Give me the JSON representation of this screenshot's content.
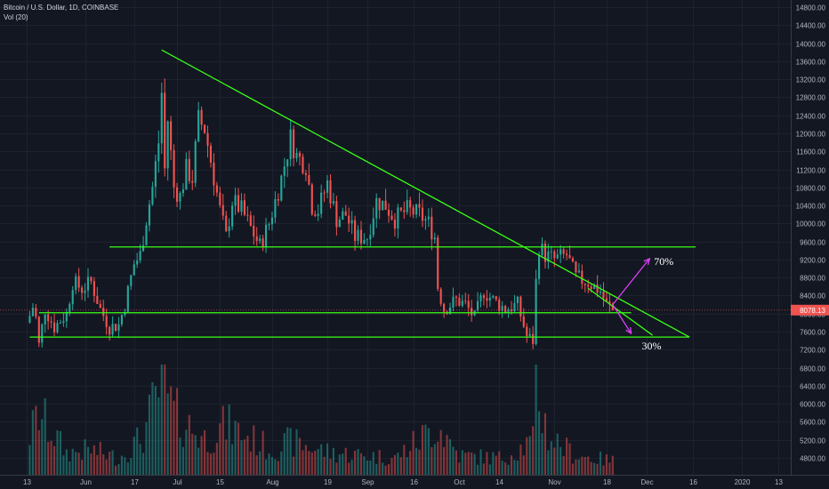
{
  "header": {
    "symbol_line": "Bitcoin / U.S. Dollar, 1D, COINBASE",
    "volume_line": "Vol (20)"
  },
  "colors": {
    "background": "#131722",
    "grid": "#1e2230",
    "up": "#26a69a",
    "down": "#ef5350",
    "trendline": "#39ff14",
    "arrow": "#e040fb",
    "price_tag": "#ef5350"
  },
  "chart_data": {
    "type": "candlestick",
    "y_axis": {
      "ticks": [
        4800,
        5200,
        5600,
        6000,
        6400,
        6800,
        7200,
        7600,
        8000,
        8400,
        8800,
        9200,
        9600,
        10000,
        10400,
        10800,
        11200,
        11600,
        12000,
        12400,
        12800,
        13200,
        13600,
        14000,
        14400,
        14800
      ],
      "tick_labels": [
        "4800.00",
        "5200.00",
        "5600.00",
        "6000.00",
        "6400.00",
        "6800.00",
        "7200.00",
        "7600.00",
        "8000.00",
        "8400.00",
        "8800.00",
        "9200.00",
        "9600.00",
        "10000.00",
        "10400.00",
        "10800.00",
        "11200.00",
        "11600.00",
        "12000.00",
        "12400.00",
        "12800.00",
        "13200.00",
        "13600.00",
        "14000.00",
        "14400.00",
        "14800.00"
      ],
      "range": [
        4700,
        14900
      ]
    },
    "x_axis": {
      "range": [
        "2019-05-13",
        "2020-01-15"
      ],
      "ticks": [
        {
          "label": "13",
          "date": "2019-05-13"
        },
        {
          "label": "Jun",
          "date": "2019-06-01"
        },
        {
          "label": "17",
          "date": "2019-06-17"
        },
        {
          "label": "Jul",
          "date": "2019-07-01"
        },
        {
          "label": "15",
          "date": "2019-07-15"
        },
        {
          "label": "Aug",
          "date": "2019-08-01"
        },
        {
          "label": "19",
          "date": "2019-08-19"
        },
        {
          "label": "Sep",
          "date": "2019-09-01"
        },
        {
          "label": "16",
          "date": "2019-09-16"
        },
        {
          "label": "Oct",
          "date": "2019-10-01"
        },
        {
          "label": "14",
          "date": "2019-10-14"
        },
        {
          "label": "Nov",
          "date": "2019-11-01"
        },
        {
          "label": "18",
          "date": "2019-11-18"
        },
        {
          "label": "Dec",
          "date": "2019-12-01"
        },
        {
          "label": "16",
          "date": "2019-12-16"
        },
        {
          "label": "2020",
          "date": "2020-01-01"
        },
        {
          "label": "13",
          "date": "2020-01-13"
        }
      ]
    },
    "current_price": {
      "value": 8078.13,
      "label": "8078.13"
    },
    "price_path": [
      [
        "2019-05-13",
        7800
      ],
      [
        "2019-05-14",
        7950
      ],
      [
        "2019-05-15",
        8150
      ],
      [
        "2019-05-16",
        7900
      ],
      [
        "2019-05-17",
        7300
      ],
      [
        "2019-05-19",
        8100
      ],
      [
        "2019-05-22",
        7700
      ],
      [
        "2019-05-26",
        8000
      ],
      [
        "2019-05-28",
        8700
      ],
      [
        "2019-05-31",
        8550
      ],
      [
        "2019-06-03",
        8700
      ],
      [
        "2019-06-06",
        8100
      ],
      [
        "2019-06-09",
        7700
      ],
      [
        "2019-06-12",
        7750
      ],
      [
        "2019-06-14",
        8200
      ],
      [
        "2019-06-17",
        9100
      ],
      [
        "2019-06-19",
        9300
      ],
      [
        "2019-06-21",
        10100
      ],
      [
        "2019-06-23",
        10800
      ],
      [
        "2019-06-25",
        11800
      ],
      [
        "2019-06-26",
        12900
      ],
      [
        "2019-06-27",
        11200
      ],
      [
        "2019-06-28",
        12300
      ],
      [
        "2019-06-30",
        10800
      ],
      [
        "2019-07-02",
        10600
      ],
      [
        "2019-07-04",
        11200
      ],
      [
        "2019-07-06",
        11000
      ],
      [
        "2019-07-08",
        12300
      ],
      [
        "2019-07-10",
        12100
      ],
      [
        "2019-07-12",
        11400
      ],
      [
        "2019-07-15",
        10300
      ],
      [
        "2019-07-17",
        9700
      ],
      [
        "2019-07-19",
        10500
      ],
      [
        "2019-07-22",
        10300
      ],
      [
        "2019-07-25",
        9900
      ],
      [
        "2019-07-28",
        9500
      ],
      [
        "2019-07-31",
        10000
      ],
      [
        "2019-08-04",
        11000
      ],
      [
        "2019-08-07",
        11900
      ],
      [
        "2019-08-09",
        11500
      ],
      [
        "2019-08-12",
        11300
      ],
      [
        "2019-08-14",
        10400
      ],
      [
        "2019-08-16",
        10300
      ],
      [
        "2019-08-19",
        10900
      ],
      [
        "2019-08-22",
        10100
      ],
      [
        "2019-08-25",
        10200
      ],
      [
        "2019-08-28",
        9700
      ],
      [
        "2019-09-01",
        9700
      ],
      [
        "2019-09-04",
        10500
      ],
      [
        "2019-09-07",
        10400
      ],
      [
        "2019-09-10",
        10100
      ],
      [
        "2019-09-14",
        10300
      ],
      [
        "2019-09-18",
        10200
      ],
      [
        "2019-09-21",
        10000
      ],
      [
        "2019-09-23",
        9700
      ],
      [
        "2019-09-24",
        8600
      ],
      [
        "2019-09-26",
        8100
      ],
      [
        "2019-09-30",
        8300
      ],
      [
        "2019-10-03",
        8200
      ],
      [
        "2019-10-06",
        7900
      ],
      [
        "2019-10-09",
        8500
      ],
      [
        "2019-10-12",
        8300
      ],
      [
        "2019-10-16",
        8100
      ],
      [
        "2019-10-20",
        8200
      ],
      [
        "2019-10-23",
        7500
      ],
      [
        "2019-10-25",
        7400
      ],
      [
        "2019-10-26",
        8700
      ],
      [
        "2019-10-27",
        9500
      ],
      [
        "2019-10-29",
        9300
      ],
      [
        "2019-11-01",
        9200
      ],
      [
        "2019-11-05",
        9300
      ],
      [
        "2019-11-08",
        8800
      ],
      [
        "2019-11-12",
        8700
      ],
      [
        "2019-11-16",
        8500
      ],
      [
        "2019-11-18",
        8200
      ],
      [
        "2019-11-20",
        8078
      ]
    ],
    "volume_profile": [
      [
        "2019-05-13",
        1200
      ],
      [
        "2019-05-17",
        2200
      ],
      [
        "2019-05-26",
        800
      ],
      [
        "2019-06-03",
        900
      ],
      [
        "2019-06-12",
        600
      ],
      [
        "2019-06-20",
        1400
      ],
      [
        "2019-06-26",
        3400
      ],
      [
        "2019-06-30",
        2200
      ],
      [
        "2019-07-10",
        1300
      ],
      [
        "2019-07-17",
        1800
      ],
      [
        "2019-08-01",
        900
      ],
      [
        "2019-08-07",
        1200
      ],
      [
        "2019-08-20",
        800
      ],
      [
        "2019-09-01",
        700
      ],
      [
        "2019-09-10",
        600
      ],
      [
        "2019-09-24",
        1800
      ],
      [
        "2019-10-01",
        700
      ],
      [
        "2019-10-15",
        600
      ],
      [
        "2019-10-25",
        1200
      ],
      [
        "2019-10-26",
        3200
      ],
      [
        "2019-10-30",
        1400
      ],
      [
        "2019-11-08",
        700
      ],
      [
        "2019-11-20",
        500
      ]
    ],
    "drawings": {
      "descending_trendline": {
        "from": [
          "2019-06-26",
          13850
        ],
        "to": [
          "2019-12-15",
          7480
        ]
      },
      "horizontal_lines": [
        {
          "from": "2019-06-09",
          "to": "2019-12-17",
          "price": 9480
        },
        {
          "from": "2019-05-17",
          "to": "2019-11-26",
          "price": 8020
        },
        {
          "from": "2019-05-14",
          "to": "2019-12-15",
          "price": 7480
        }
      ],
      "lower_support_line": {
        "from": [
          "2019-11-12",
          8560
        ],
        "to": [
          "2019-12-03",
          7520
        ]
      },
      "arrows": [
        {
          "from": [
            "2019-11-20",
            8200
          ],
          "to": [
            "2019-12-02",
            9220
          ],
          "label": "70%"
        },
        {
          "from": [
            "2019-11-20",
            8200
          ],
          "to": [
            "2019-11-26",
            7560
          ],
          "label": "30%"
        }
      ]
    }
  }
}
